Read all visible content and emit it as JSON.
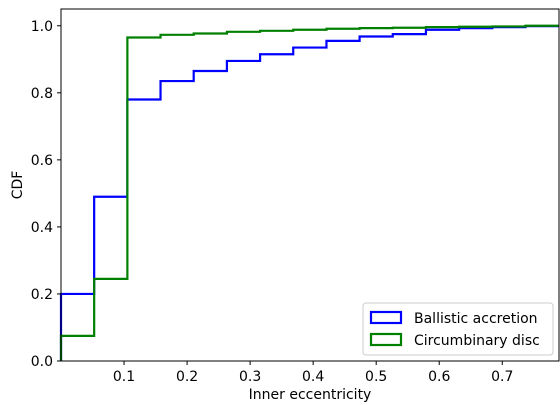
{
  "chart_data": {
    "type": "step",
    "xlabel": "Inner eccentricity",
    "ylabel": "CDF",
    "xlim": [
      0.0,
      0.79
    ],
    "ylim": [
      0.0,
      1.05
    ],
    "x_ticks": [
      0.1,
      0.2,
      0.3,
      0.4,
      0.5,
      0.6,
      0.7
    ],
    "x_tick_labels": [
      "0.1",
      "0.2",
      "0.3",
      "0.4",
      "0.5",
      "0.6",
      "0.7"
    ],
    "y_ticks": [
      0.0,
      0.2,
      0.4,
      0.6,
      0.8,
      1.0
    ],
    "y_tick_labels": [
      "0.0",
      "0.2",
      "0.4",
      "0.6",
      "0.8",
      "1.0"
    ],
    "legend_position": "bottom-right",
    "grid": false,
    "series": [
      {
        "name": "Ballistic accretion",
        "color": "#0000ff",
        "edges": [
          0.0,
          0.0526,
          0.1053,
          0.1579,
          0.2105,
          0.2632,
          0.3158,
          0.3684,
          0.4211,
          0.4737,
          0.5263,
          0.5789,
          0.6316,
          0.6842,
          0.7368,
          0.79
        ],
        "values": [
          0.2,
          0.49,
          0.78,
          0.835,
          0.865,
          0.895,
          0.915,
          0.935,
          0.955,
          0.968,
          0.975,
          0.988,
          0.993,
          0.996,
          0.999
        ]
      },
      {
        "name": "Circumbinary disc",
        "color": "#008000",
        "edges": [
          0.0,
          0.0526,
          0.1053,
          0.1579,
          0.2105,
          0.2632,
          0.3158,
          0.3684,
          0.4211,
          0.4737,
          0.5263,
          0.5789,
          0.6316,
          0.6842,
          0.7368,
          0.79
        ],
        "values": [
          0.075,
          0.245,
          0.965,
          0.973,
          0.977,
          0.982,
          0.985,
          0.988,
          0.991,
          0.993,
          0.994,
          0.996,
          0.997,
          0.998,
          1.0
        ]
      }
    ]
  }
}
